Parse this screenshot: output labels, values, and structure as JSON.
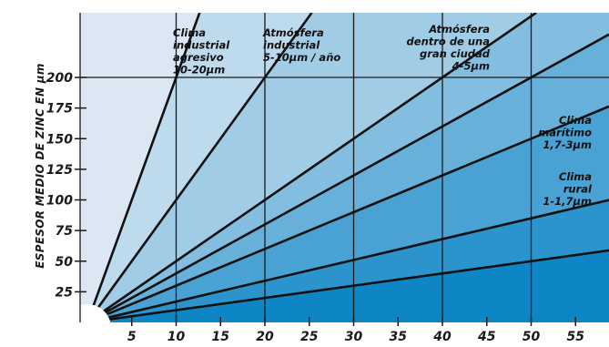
{
  "chart_data": {
    "type": "line",
    "title": "",
    "xlabel": "",
    "ylabel": "ESPESOR MEDIO DE ZINC EN µm",
    "xlim": [
      0,
      60
    ],
    "ylim": [
      0,
      205
    ],
    "x_ticks": [
      5,
      10,
      15,
      20,
      25,
      30,
      35,
      40,
      45,
      50,
      55
    ],
    "y_ticks": [
      25,
      50,
      75,
      100,
      125,
      150,
      175,
      200
    ],
    "vertical_gridlines_at": [
      10,
      20,
      30,
      40,
      50
    ],
    "horizontal_gridlines_at": [
      200
    ],
    "lines": [
      {
        "slope": 20
      },
      {
        "slope": 10
      },
      {
        "slope": 5
      },
      {
        "slope": 4
      },
      {
        "slope": 3
      },
      {
        "slope": 1.7
      },
      {
        "slope": 1
      }
    ],
    "zones": [
      {
        "label_lines": [
          "Clima",
          "industrial",
          "agresivo",
          "10-20µm"
        ]
      },
      {
        "label_lines": [
          "Atmósfera",
          "industrial",
          "5-10µm / año"
        ]
      },
      {
        "label_lines": [
          "Atmósfera",
          "dentro de una",
          "gran ciudad",
          "4-5µm"
        ]
      },
      {
        "label_lines": [
          "Clima",
          "marítimo",
          "1,7-3µm"
        ]
      },
      {
        "label_lines": [
          "Clima",
          "rural",
          "1-1,7µm"
        ]
      }
    ],
    "colors": {
      "band_light": "#dbe8f3",
      "band_dark": "#0e86c6",
      "line": "#111111",
      "grid": "#1a1a1a"
    }
  }
}
